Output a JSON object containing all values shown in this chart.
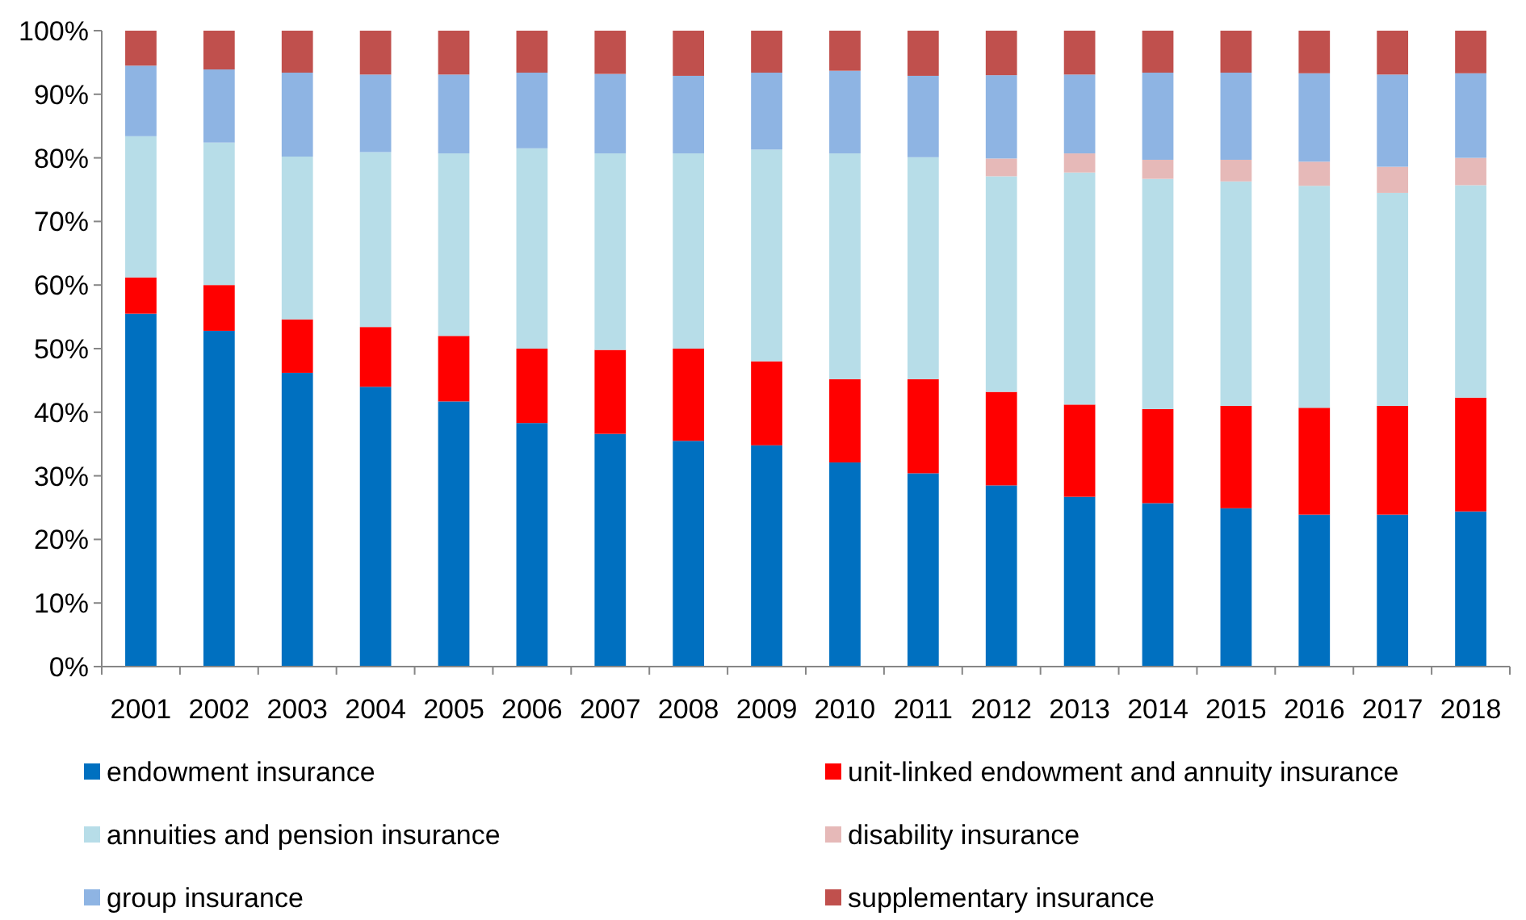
{
  "chart_data": {
    "type": "bar",
    "stacked": true,
    "legend": "bottom",
    "grid": false,
    "categories": [
      "2001",
      "2002",
      "2003",
      "2004",
      "2005",
      "2006",
      "2007",
      "2008",
      "2009",
      "2010",
      "2011",
      "2012",
      "2013",
      "2014",
      "2015",
      "2016",
      "2017",
      "2018"
    ],
    "ylim": [
      0,
      100
    ],
    "yticks": [
      {
        "value": 0,
        "label": "0%"
      },
      {
        "value": 10,
        "label": "10%"
      },
      {
        "value": 20,
        "label": "20%"
      },
      {
        "value": 30,
        "label": "30%"
      },
      {
        "value": 40,
        "label": "40%"
      },
      {
        "value": 50,
        "label": "50%"
      },
      {
        "value": 60,
        "label": "60%"
      },
      {
        "value": 70,
        "label": "70%"
      },
      {
        "value": 80,
        "label": "80%"
      },
      {
        "value": 90,
        "label": "90%"
      },
      {
        "value": 100,
        "label": "100%"
      }
    ],
    "series": [
      {
        "name": "endowment insurance",
        "color": "#0070c0",
        "values": [
          55.5,
          52.8,
          46.2,
          44.0,
          41.7,
          38.3,
          36.6,
          35.5,
          34.8,
          32.1,
          30.4,
          28.5,
          26.7,
          25.7,
          24.9,
          23.9,
          23.9,
          24.4
        ]
      },
      {
        "name": "unit-linked endowment and annuity insurance",
        "color": "#ff0000",
        "values": [
          5.7,
          7.2,
          8.4,
          9.4,
          10.3,
          11.7,
          13.2,
          14.5,
          13.2,
          13.1,
          14.8,
          14.7,
          14.5,
          14.8,
          16.1,
          16.8,
          17.1,
          17.9
        ]
      },
      {
        "name": "annuities and pension insurance",
        "color": "#b7dde8",
        "values": [
          22.2,
          22.4,
          25.6,
          27.5,
          28.7,
          31.5,
          30.9,
          30.7,
          33.3,
          35.5,
          34.9,
          33.9,
          36.5,
          36.2,
          35.3,
          34.9,
          33.5,
          33.4
        ]
      },
      {
        "name": "disability insurance",
        "color": "#e6b9b8",
        "values": [
          0,
          0,
          0,
          0,
          0,
          0,
          0,
          0,
          0,
          0,
          0,
          2.8,
          3.0,
          3.0,
          3.4,
          3.8,
          4.1,
          4.3
        ]
      },
      {
        "name": "group insurance",
        "color": "#8eb4e3",
        "values": [
          11.1,
          11.5,
          13.2,
          12.2,
          12.4,
          11.9,
          12.5,
          12.2,
          12.1,
          13.0,
          12.8,
          13.1,
          12.4,
          13.7,
          13.7,
          13.9,
          14.5,
          13.3
        ]
      },
      {
        "name": "supplementary insurance",
        "color": "#c0504d",
        "values": [
          5.5,
          6.1,
          6.6,
          6.9,
          6.9,
          6.6,
          6.8,
          7.1,
          6.6,
          6.3,
          7.1,
          7.0,
          6.9,
          6.6,
          6.6,
          6.7,
          6.9,
          6.7
        ]
      }
    ]
  }
}
